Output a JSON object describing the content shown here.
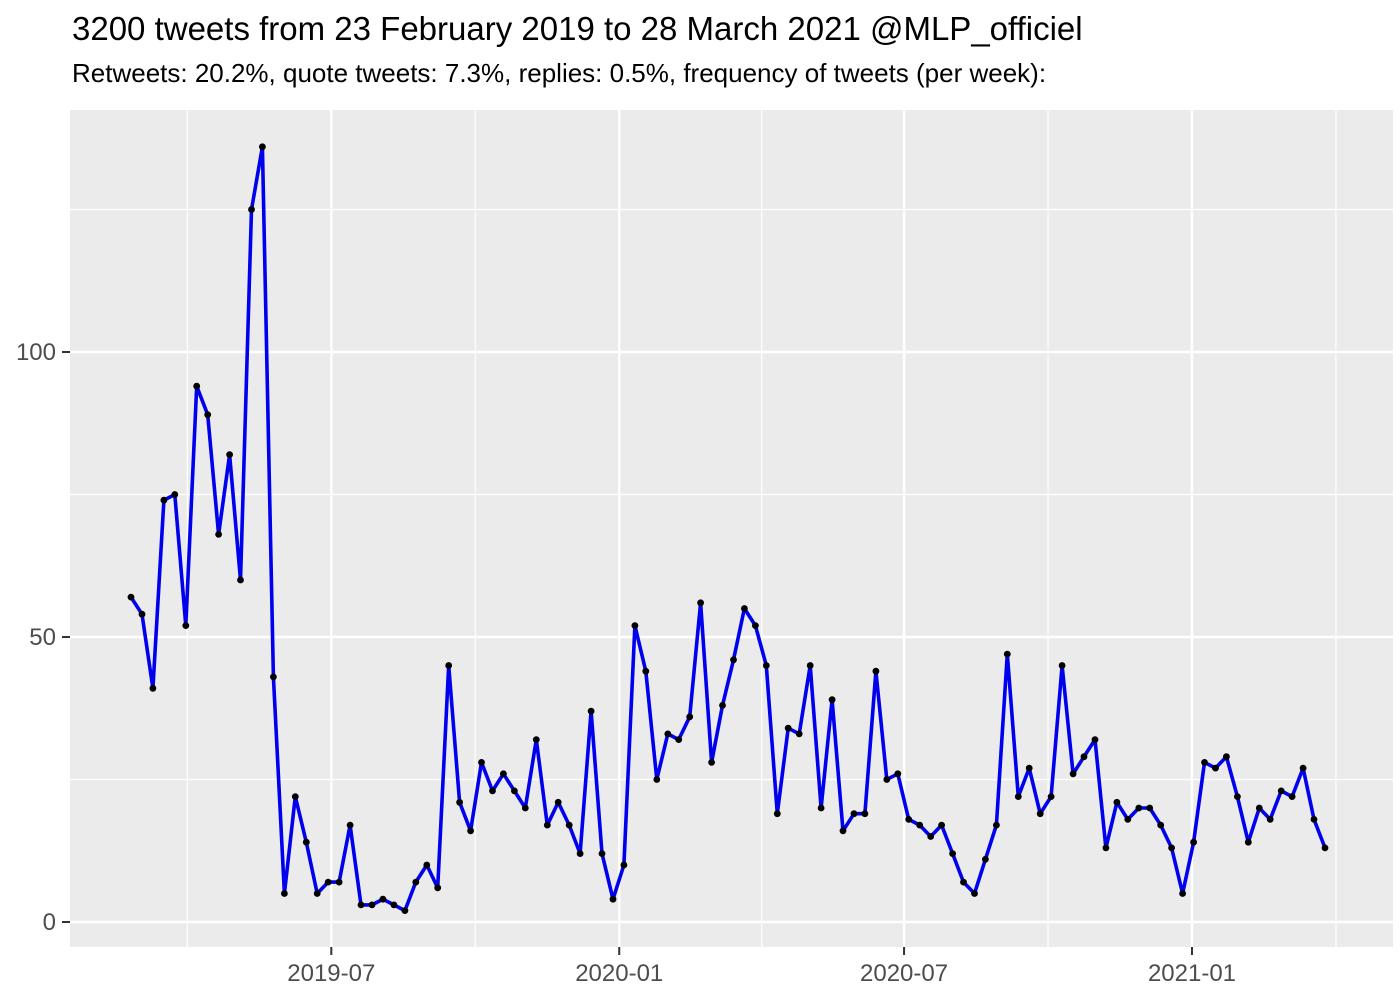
{
  "header": {
    "title": "3200 tweets from 23 February 2019 to 28 March 2021 @MLP_officiel",
    "subtitle": "Retweets: 20.2%, quote tweets: 7.3%, replies: 0.5%, frequency of tweets (per week):"
  },
  "chart_data": {
    "type": "line",
    "title": "3200 tweets from 23 February 2019 to 28 March 2021 @MLP_officiel",
    "subtitle": "Retweets: 20.2%, quote tweets: 7.3%, replies: 0.5%, frequency of tweets (per week):",
    "series_name": "tweets per week",
    "total_tweets": 3200,
    "xlabel": "",
    "ylabel": "",
    "x_start_date": "2019-02-23",
    "x_end_date": "2021-03-28",
    "x_step_days": 7,
    "values": [
      57,
      54,
      41,
      74,
      75,
      52,
      94,
      89,
      68,
      82,
      60,
      125,
      136,
      43,
      5,
      22,
      14,
      5,
      7,
      7,
      17,
      3,
      3,
      4,
      3,
      2,
      7,
      10,
      6,
      45,
      21,
      16,
      28,
      23,
      26,
      23,
      20,
      32,
      17,
      21,
      17,
      12,
      37,
      12,
      4,
      10,
      52,
      44,
      25,
      33,
      32,
      36,
      56,
      28,
      38,
      46,
      55,
      52,
      45,
      19,
      34,
      33,
      45,
      20,
      39,
      16,
      19,
      19,
      44,
      25,
      26,
      18,
      17,
      15,
      17,
      12,
      7,
      5,
      11,
      17,
      47,
      22,
      27,
      19,
      22,
      45,
      26,
      29,
      32,
      13,
      21,
      18,
      20,
      20,
      17,
      13,
      5,
      14,
      28,
      27,
      29,
      22,
      14,
      20,
      18,
      23,
      22,
      27,
      18,
      13
    ],
    "x_tick_labels": [
      {
        "date": "2019-07-01",
        "label": "2019-07"
      },
      {
        "date": "2020-01-01",
        "label": "2020-01"
      },
      {
        "date": "2020-07-01",
        "label": "2020-07"
      },
      {
        "date": "2021-01-01",
        "label": "2021-01"
      }
    ],
    "y_ticks": [
      0,
      50,
      100
    ],
    "y_minor_ticks": [
      25,
      75,
      125
    ],
    "ylim": [
      -5,
      142
    ],
    "grid": true,
    "legend": false,
    "colors": {
      "line": "#0000EE",
      "point": "#000000",
      "panel_background": "#EBEBEB",
      "grid_major": "#FFFFFF",
      "grid_minor": "#FFFFFF",
      "axis_text": "#4D4D4D",
      "tick_mark": "#333333",
      "title_text": "#000000"
    }
  }
}
